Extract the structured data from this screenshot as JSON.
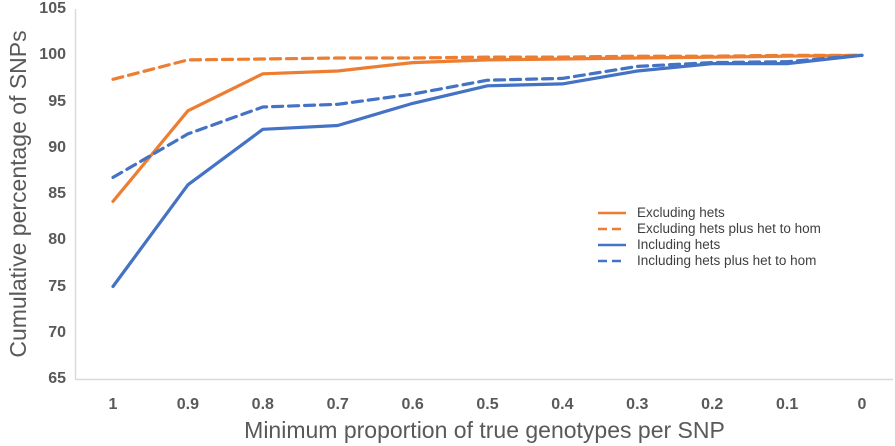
{
  "chart_data": {
    "type": "line",
    "title": "",
    "xlabel": "Minimum proportion of true genotypes per SNP",
    "ylabel": "Cumulative percentage of SNPs",
    "x": [
      1,
      0.9,
      0.8,
      0.7,
      0.6,
      0.5,
      0.4,
      0.3,
      0.2,
      0.1,
      0
    ],
    "x_tick_labels": [
      "1",
      "0.9",
      "0.8",
      "0.7",
      "0.6",
      "0.5",
      "0.4",
      "0.3",
      "0.2",
      "0.1",
      "0"
    ],
    "x_axis_reversed": true,
    "ylim": [
      65,
      105
    ],
    "y_ticks": [
      105,
      100,
      95,
      90,
      85,
      80,
      75,
      70,
      65
    ],
    "grid": false,
    "legend_position": "inside-right",
    "series": [
      {
        "name": "Excluding hets",
        "color": "#ED7D31",
        "dash": "solid",
        "values": [
          84.2,
          94,
          98,
          98.3,
          99.2,
          99.5,
          99.6,
          99.7,
          99.8,
          99.9,
          100
        ]
      },
      {
        "name": "Excluding hets plus het to hom",
        "color": "#ED7D31",
        "dash": "dashed",
        "values": [
          97.4,
          99.5,
          99.6,
          99.7,
          99.7,
          99.8,
          99.8,
          99.9,
          99.9,
          100,
          100
        ]
      },
      {
        "name": "Including hets",
        "color": "#4472C4",
        "dash": "solid",
        "values": [
          75,
          86,
          92,
          92.4,
          94.8,
          96.7,
          96.9,
          98.3,
          99.1,
          99.1,
          100
        ]
      },
      {
        "name": "Including hets plus het to hom",
        "color": "#4472C4",
        "dash": "dashed",
        "values": [
          86.8,
          91.5,
          94.4,
          94.7,
          95.8,
          97.3,
          97.5,
          98.8,
          99.2,
          99.3,
          100
        ]
      }
    ],
    "axis_line_color": "#D9D9D9",
    "tick_label_color": "#595959",
    "axis_title_color": "#595959"
  }
}
